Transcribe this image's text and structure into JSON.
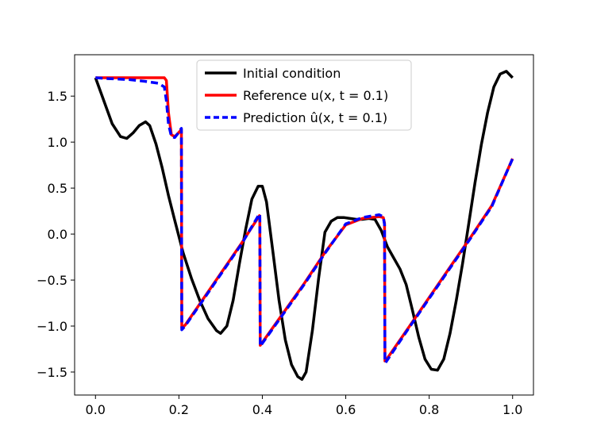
{
  "chart_data": {
    "type": "line",
    "title": "",
    "xlabel": "",
    "ylabel": "",
    "xlim": [
      -0.05,
      1.05
    ],
    "ylim": [
      -1.75,
      1.95
    ],
    "xticks": [
      0.0,
      0.2,
      0.4,
      0.6,
      0.8,
      1.0
    ],
    "xtick_labels": [
      "0.0",
      "0.2",
      "0.4",
      "0.6",
      "0.8",
      "1.0"
    ],
    "yticks": [
      -1.5,
      -1.0,
      -0.5,
      0.0,
      0.5,
      1.0,
      1.5
    ],
    "ytick_labels": [
      "−1.5",
      "−1.0",
      "−0.5",
      "0.0",
      "0.5",
      "1.0",
      "1.5"
    ],
    "grid": false,
    "legend_position": "top-center",
    "series": [
      {
        "name": "Initial condition",
        "color": "#000000",
        "style": "solid",
        "x": [
          0.0,
          0.02,
          0.04,
          0.06,
          0.075,
          0.09,
          0.105,
          0.12,
          0.13,
          0.145,
          0.16,
          0.175,
          0.19,
          0.21,
          0.23,
          0.25,
          0.27,
          0.29,
          0.3,
          0.315,
          0.33,
          0.345,
          0.36,
          0.375,
          0.39,
          0.4,
          0.41,
          0.425,
          0.44,
          0.455,
          0.47,
          0.485,
          0.495,
          0.505,
          0.52,
          0.535,
          0.55,
          0.565,
          0.58,
          0.595,
          0.61,
          0.625,
          0.64,
          0.655,
          0.67,
          0.685,
          0.7,
          0.715,
          0.73,
          0.745,
          0.76,
          0.775,
          0.79,
          0.805,
          0.82,
          0.835,
          0.85,
          0.865,
          0.88,
          0.895,
          0.91,
          0.925,
          0.94,
          0.955,
          0.97,
          0.985,
          1.0
        ],
        "y": [
          1.7,
          1.45,
          1.2,
          1.06,
          1.04,
          1.1,
          1.18,
          1.22,
          1.18,
          0.98,
          0.72,
          0.42,
          0.15,
          -0.2,
          -0.48,
          -0.72,
          -0.92,
          -1.05,
          -1.08,
          -1.0,
          -0.72,
          -0.32,
          0.05,
          0.38,
          0.52,
          0.52,
          0.35,
          -0.18,
          -0.72,
          -1.15,
          -1.42,
          -1.55,
          -1.58,
          -1.5,
          -1.05,
          -0.48,
          0.02,
          0.14,
          0.18,
          0.18,
          0.17,
          0.16,
          0.16,
          0.17,
          0.16,
          0.04,
          -0.14,
          -0.26,
          -0.38,
          -0.55,
          -0.83,
          -1.12,
          -1.36,
          -1.47,
          -1.48,
          -1.36,
          -1.08,
          -0.72,
          -0.32,
          0.12,
          0.56,
          0.97,
          1.32,
          1.6,
          1.74,
          1.77,
          1.7
        ]
      },
      {
        "name": "Reference u(x, t = 0.1)",
        "color": "#ff0000",
        "style": "solid",
        "x": [
          0.0,
          0.03,
          0.08,
          0.12,
          0.15,
          0.165,
          0.17,
          0.175,
          0.182,
          0.19,
          0.197,
          0.203,
          0.206,
          0.207,
          0.215,
          0.25,
          0.3,
          0.35,
          0.393,
          0.394,
          0.395,
          0.45,
          0.5,
          0.55,
          0.6,
          0.64,
          0.68,
          0.69,
          0.693,
          0.694,
          0.695,
          0.75,
          0.8,
          0.85,
          0.9,
          0.95,
          1.0
        ],
        "y": [
          1.7,
          1.7,
          1.7,
          1.7,
          1.7,
          1.7,
          1.67,
          1.32,
          1.08,
          1.06,
          1.09,
          1.12,
          1.14,
          -1.02,
          -0.99,
          -0.76,
          -0.43,
          -0.1,
          0.2,
          0.18,
          -1.21,
          -0.86,
          -0.54,
          -0.2,
          0.1,
          0.17,
          0.19,
          0.18,
          0.12,
          -1.38,
          -1.38,
          -1.02,
          -0.69,
          -0.36,
          -0.03,
          0.31,
          0.82
        ]
      },
      {
        "name": "Prediction û(x, t = 0.1)",
        "color": "#0000ff",
        "style": "dashed",
        "x": [
          0.0,
          0.03,
          0.08,
          0.12,
          0.15,
          0.165,
          0.17,
          0.175,
          0.182,
          0.19,
          0.197,
          0.203,
          0.206,
          0.207,
          0.215,
          0.25,
          0.3,
          0.35,
          0.393,
          0.394,
          0.395,
          0.45,
          0.5,
          0.55,
          0.6,
          0.64,
          0.68,
          0.69,
          0.693,
          0.694,
          0.695,
          0.75,
          0.8,
          0.85,
          0.9,
          0.95,
          1.0
        ],
        "y": [
          1.7,
          1.69,
          1.68,
          1.66,
          1.64,
          1.6,
          1.45,
          1.2,
          1.06,
          1.05,
          1.09,
          1.13,
          1.15,
          -1.04,
          -1.0,
          -0.77,
          -0.44,
          -0.11,
          0.22,
          0.2,
          -1.22,
          -0.87,
          -0.55,
          -0.21,
          0.11,
          0.18,
          0.21,
          0.19,
          0.1,
          -1.39,
          -1.4,
          -1.03,
          -0.7,
          -0.37,
          -0.04,
          0.3,
          0.82
        ]
      }
    ]
  },
  "legend": {
    "entries": [
      {
        "label": "Initial condition",
        "color": "#000000",
        "dash": ""
      },
      {
        "label": "Reference u(x, t = 0.1)",
        "color": "#ff0000",
        "dash": ""
      },
      {
        "label": "Prediction û(x, t = 0.1)",
        "color": "#0000ff",
        "dash": "7 4"
      }
    ]
  }
}
